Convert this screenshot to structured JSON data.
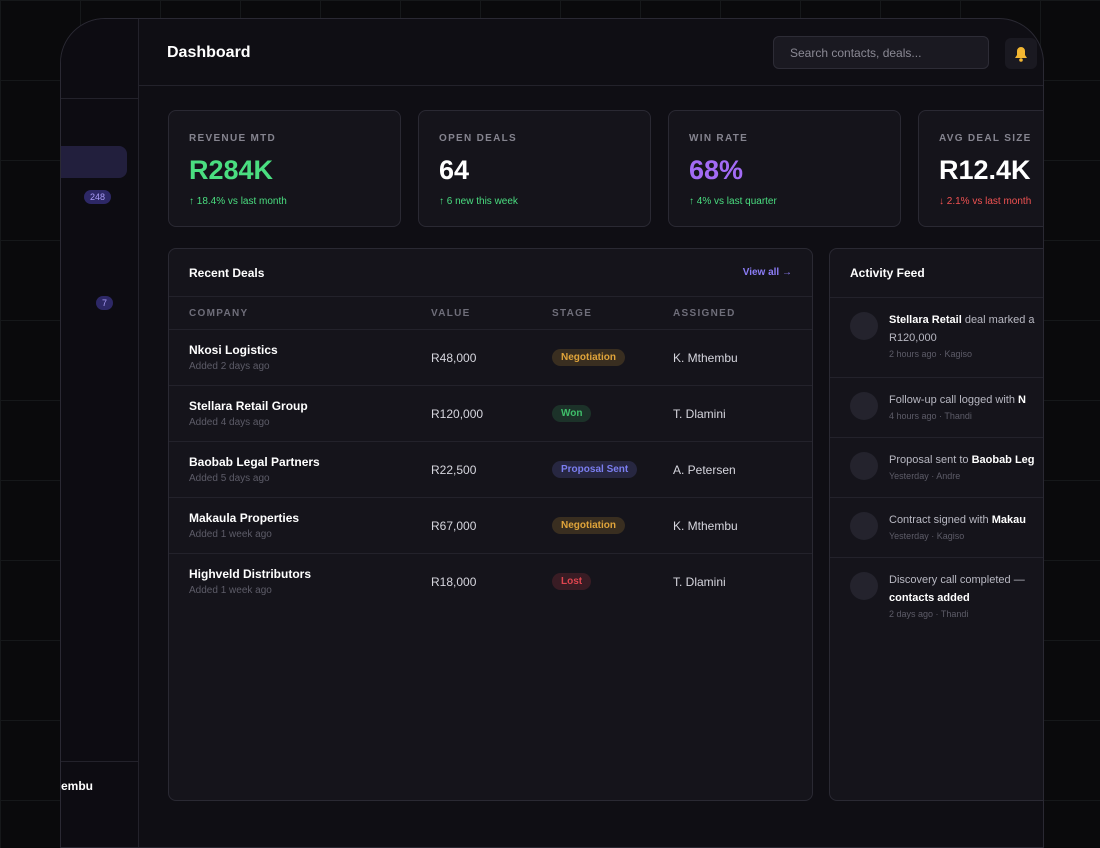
{
  "header": {
    "title": "Dashboard",
    "search_placeholder": "Search contacts, deals..."
  },
  "sidebar": {
    "badges": [
      "248",
      "7"
    ],
    "user": "embu"
  },
  "kpis": [
    {
      "label": "REVENUE MTD",
      "value": "R284K",
      "delta": "↑ 18.4% vs last month",
      "color": "#4ade80",
      "delta_color": "#4ade80"
    },
    {
      "label": "OPEN DEALS",
      "value": "64",
      "delta": "↑ 6 new this week",
      "color": "#ffffff",
      "delta_color": "#4ade80"
    },
    {
      "label": "WIN RATE",
      "value": "68%",
      "delta": "↑ 4% vs last quarter",
      "color": "#a36bf5",
      "delta_color": "#4ade80"
    },
    {
      "label": "AVG DEAL SIZE",
      "value": "R12.4K",
      "delta": "↓ 2.1% vs last month",
      "color": "#ffffff",
      "delta_color": "#f05252"
    }
  ],
  "deals": {
    "title": "Recent Deals",
    "link": "View all →",
    "columns": [
      "COMPANY",
      "VALUE",
      "STAGE",
      "ASSIGNED"
    ],
    "rows": [
      {
        "company": "Nkosi Logistics",
        "added": "Added 2 days ago",
        "value": "R48,000",
        "stage": "Negotiation",
        "stage_color": "#e0a43a",
        "assigned": "K. Mthembu"
      },
      {
        "company": "Stellara Retail Group",
        "added": "Added 4 days ago",
        "value": "R120,000",
        "stage": "Won",
        "stage_color": "#3fbf6a",
        "assigned": "T. Dlamini"
      },
      {
        "company": "Baobab Legal Partners",
        "added": "Added 5 days ago",
        "value": "R22,500",
        "stage": "Proposal Sent",
        "stage_color": "#7b7ef0",
        "assigned": "A. Petersen"
      },
      {
        "company": "Makaula Properties",
        "added": "Added 1 week ago",
        "value": "R67,000",
        "stage": "Negotiation",
        "stage_color": "#e0a43a",
        "assigned": "K. Mthembu"
      },
      {
        "company": "Highveld Distributors",
        "added": "Added 1 week ago",
        "value": "R18,000",
        "stage": "Lost",
        "stage_color": "#e0454f",
        "assigned": "T. Dlamini"
      }
    ]
  },
  "activity": {
    "title": "Activity Feed",
    "items": [
      {
        "lines": [
          [
            {
              "text": "Stellara Retail",
              "bold": true
            },
            {
              "text": " deal marked a"
            }
          ],
          [
            {
              "text": "R120,000"
            }
          ]
        ],
        "meta": "2 hours ago · Kagiso"
      },
      {
        "lines": [
          [
            {
              "text": "Follow-up call logged with "
            },
            {
              "text": "N",
              "bold": true
            }
          ]
        ],
        "meta": "4 hours ago · Thandi"
      },
      {
        "lines": [
          [
            {
              "text": "Proposal sent to "
            },
            {
              "text": "Baobab Leg",
              "bold": true
            }
          ]
        ],
        "meta": "Yesterday · Andre"
      },
      {
        "lines": [
          [
            {
              "text": "Contract signed with "
            },
            {
              "text": "Makau",
              "bold": true
            }
          ]
        ],
        "meta": "Yesterday · Kagiso"
      },
      {
        "lines": [
          [
            {
              "text": "Discovery call completed —"
            }
          ],
          [
            {
              "text": "contacts added",
              "bold": true
            }
          ]
        ],
        "meta": "2 days ago · Thandi"
      }
    ]
  }
}
